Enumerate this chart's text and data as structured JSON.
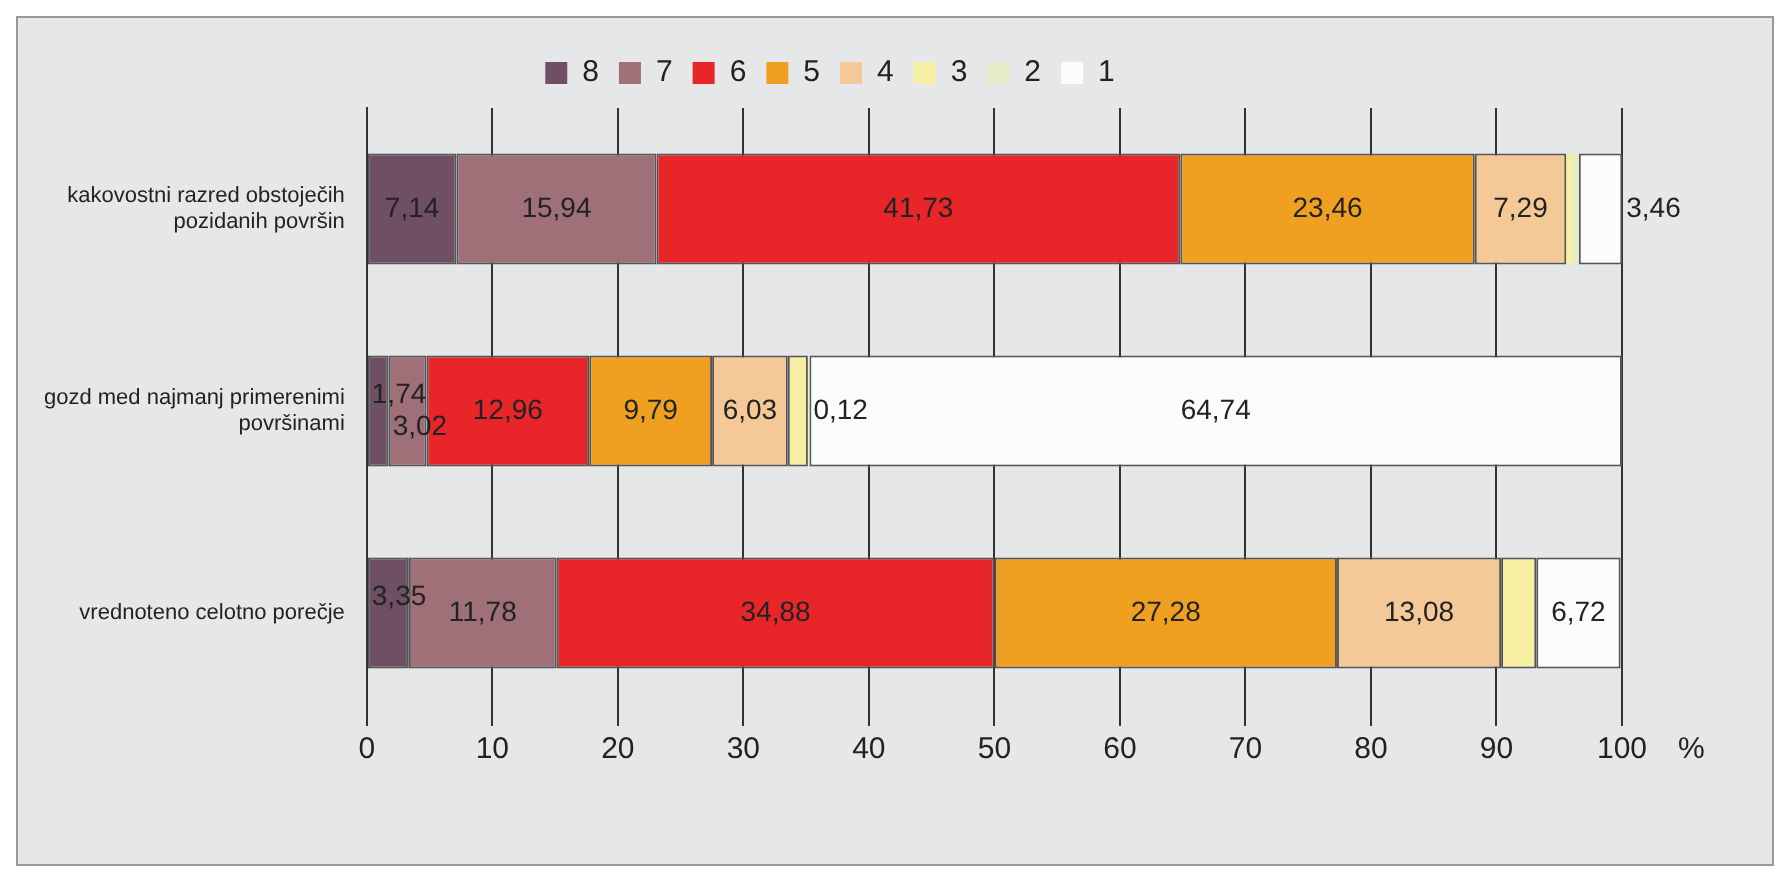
{
  "chart_data": {
    "type": "bar",
    "orientation": "horizontal",
    "stacked": true,
    "categories": [
      "kakovostni razred obstoječih pozidanih površin",
      "gozd med najmanj primerenimi površinami",
      "vrednoteno celotno porečje"
    ],
    "xlabel": "%",
    "xlim": [
      0,
      100
    ],
    "xticks": [
      0,
      10,
      20,
      30,
      40,
      50,
      60,
      70,
      80,
      90,
      100
    ],
    "grid": "x",
    "legend": "top",
    "series": [
      {
        "name": "8",
        "color": "#6e4f63",
        "values": [
          7.14,
          1.74,
          3.35
        ],
        "value_labels": [
          "7,14",
          "1,74",
          "3,35"
        ]
      },
      {
        "name": "7",
        "color": "#a07078",
        "values": [
          15.94,
          3.02,
          11.78
        ],
        "value_labels": [
          "15,94",
          "3,02",
          "11,78"
        ]
      },
      {
        "name": "6",
        "color": "#e8262a",
        "values": [
          41.73,
          12.96,
          34.88
        ],
        "value_labels": [
          "41,73",
          "12,96",
          "34,88"
        ]
      },
      {
        "name": "5",
        "color": "#f0a020",
        "values": [
          23.46,
          9.79,
          27.28
        ],
        "value_labels": [
          "23,46",
          "9,79",
          "27,28"
        ]
      },
      {
        "name": "4",
        "color": "#f5c898",
        "values": [
          7.29,
          6.03,
          13.08
        ],
        "value_labels": [
          "7,29",
          "6,03",
          "13,08"
        ]
      },
      {
        "name": "3",
        "color": "#f6eea0",
        "values": [
          0.5,
          1.6,
          2.8
        ],
        "value_labels": [
          null,
          null,
          null
        ]
      },
      {
        "name": "2",
        "color": "#e6ebc8",
        "values": [
          0.5,
          0.12,
          null
        ],
        "value_labels": [
          null,
          "0,12",
          null
        ]
      },
      {
        "name": "1",
        "color": "#fcfcfc",
        "values": [
          3.46,
          64.74,
          6.72
        ],
        "value_labels": [
          "3,46",
          "64,74",
          "6,72"
        ]
      }
    ]
  }
}
